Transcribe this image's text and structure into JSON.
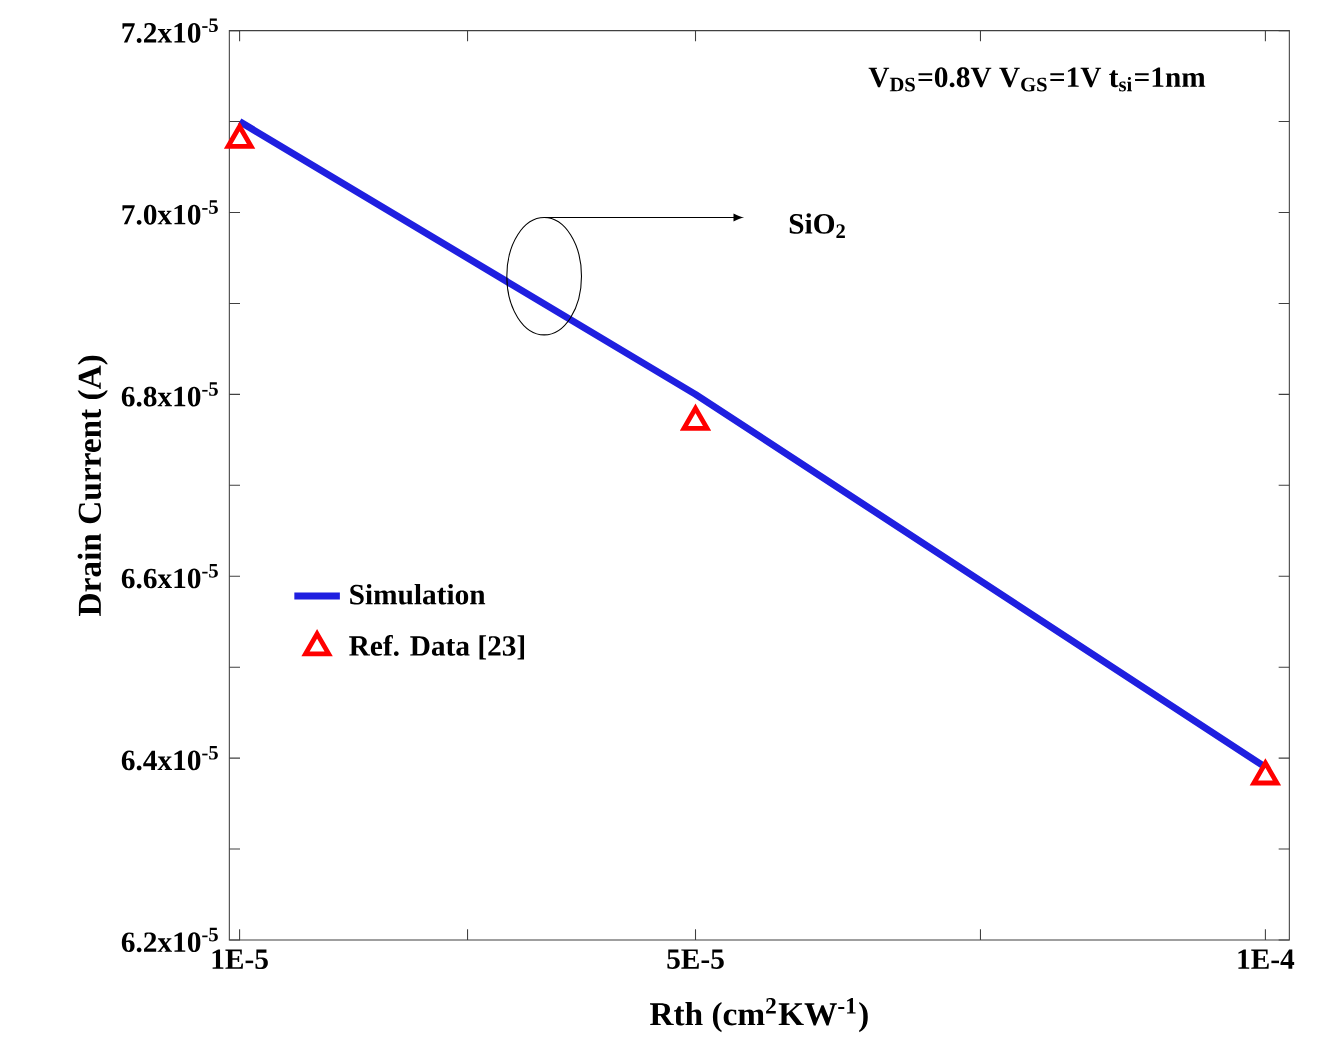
{
  "chart_data": {
    "type": "line",
    "xlabel": "Rth (cm$^{2}$KW$^{-1}$)",
    "ylabel": "Drain Current (A)",
    "xlim": [
      9.1e-06,
      0.0001021
    ],
    "xticks": [
      {
        "value": 1e-05,
        "label": "1E-5"
      },
      {
        "value": 3e-05,
        "label": null
      },
      {
        "value": 5e-05,
        "label": "5E-5"
      },
      {
        "value": 7.5e-05,
        "label": null
      },
      {
        "value": 0.0001,
        "label": "1E-4"
      }
    ],
    "ylim": [
      6.2e-05,
      7.2e-05
    ],
    "yticks": [
      {
        "value": 6.2e-05,
        "label": "6.2x10$^{-5}$"
      },
      {
        "value": 6.3e-05,
        "label": null
      },
      {
        "value": 6.4e-05,
        "label": "6.4x10$^{-5}$"
      },
      {
        "value": 6.5e-05,
        "label": null
      },
      {
        "value": 6.6e-05,
        "label": "6.6x10$^{-5}$"
      },
      {
        "value": 6.7e-05,
        "label": null
      },
      {
        "value": 6.8e-05,
        "label": "6.8x10$^{-5}$"
      },
      {
        "value": 6.9e-05,
        "label": null
      },
      {
        "value": 7e-05,
        "label": "7.0x10$^{-5}$"
      },
      {
        "value": 7.1e-05,
        "label": null
      },
      {
        "value": 7.2e-05,
        "label": "7.2x10$^{-5}$"
      }
    ],
    "series": [
      {
        "name": "Simulation",
        "type": "line",
        "color": "#1f1fe0",
        "marker": "none",
        "line_style": "solid",
        "x": [
          1e-05,
          5e-05,
          0.0001
        ],
        "values": [
          7.1e-05,
          6.8e-05,
          6.39e-05
        ]
      },
      {
        "name": "Ref. Data [23]",
        "type": "scatter",
        "color": "#ff0000",
        "marker": "triangle",
        "x": [
          1e-05,
          5e-05,
          0.0001
        ],
        "values": [
          7.08e-05,
          6.77e-05,
          6.38e-05
        ]
      }
    ],
    "annotations": [
      "V$_{DS}$=0.8V  V$_{GS}$=1V  t$_{si}$=1nm",
      "SiO$_{2}$"
    ],
    "legend": "left",
    "grid": false
  }
}
